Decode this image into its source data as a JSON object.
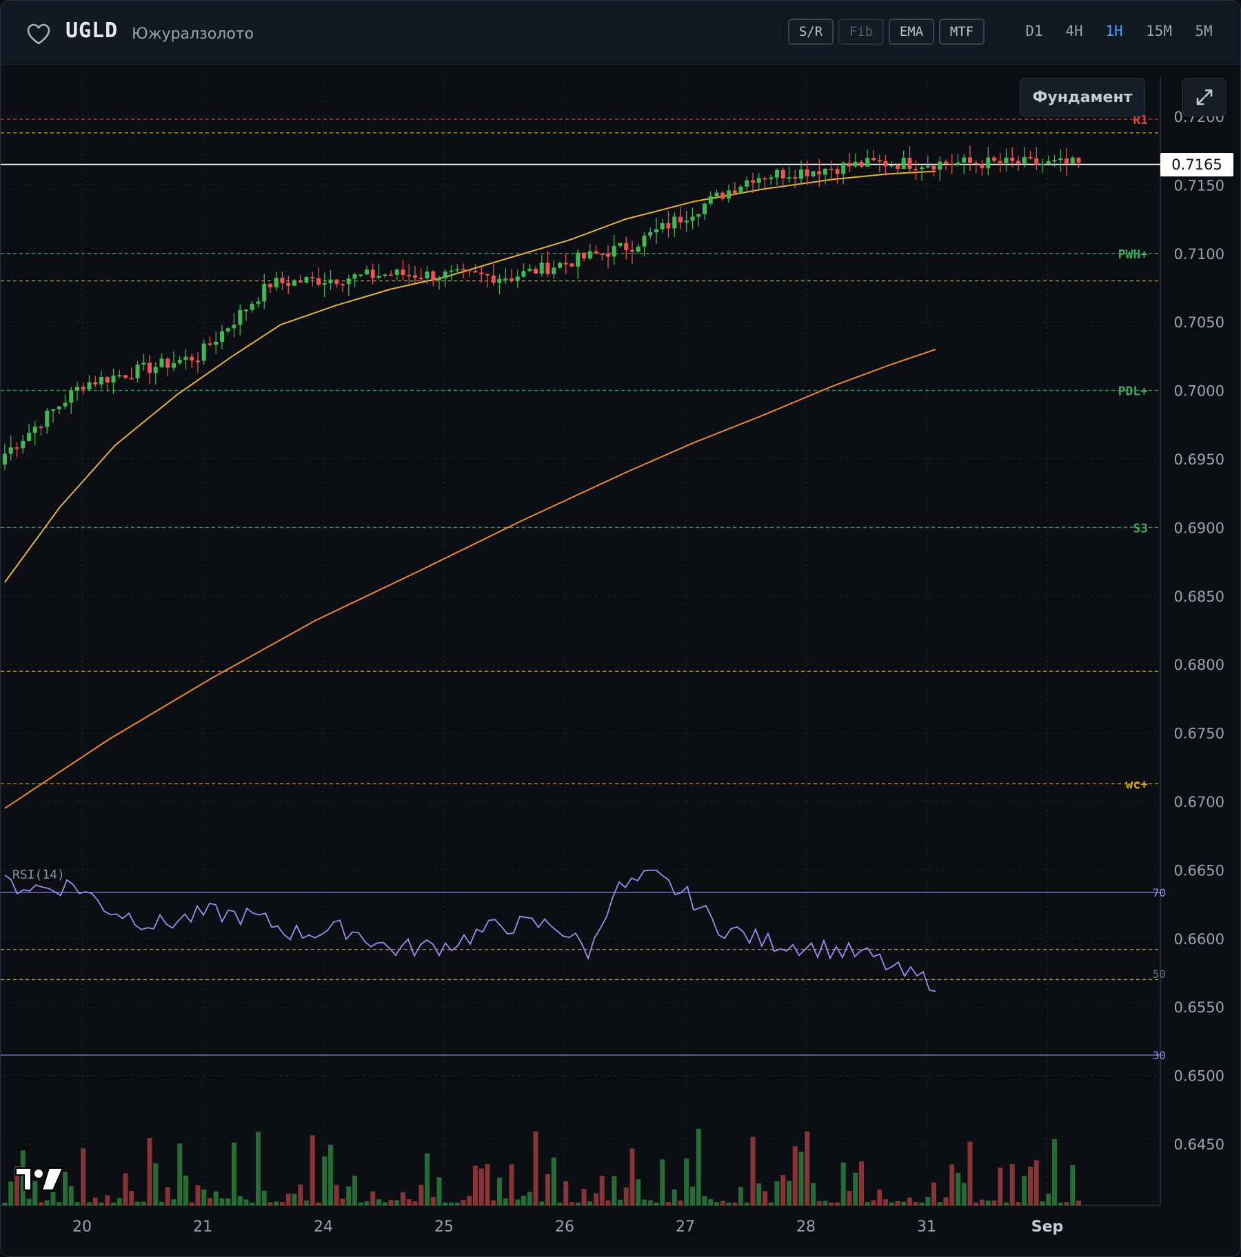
{
  "header": {
    "ticker": "UGLD",
    "company": "Южуралзолото",
    "tools": [
      {
        "label": "S/R",
        "enabled": true
      },
      {
        "label": "Fib",
        "enabled": false
      },
      {
        "label": "EMA",
        "enabled": true
      },
      {
        "label": "MTF",
        "enabled": true
      }
    ],
    "timeframes": [
      "D1",
      "4H",
      "1H",
      "15M",
      "5M"
    ],
    "active_timeframe": "1H"
  },
  "buttons": {
    "fundamental": "Фундамент",
    "expand_icon": "expand-icon",
    "favorite_icon": "heart-icon"
  },
  "colors": {
    "up": "#3fb950",
    "down": "#f05252",
    "ema_fast": "#e8b33a",
    "ema_slow": "#f0892e",
    "rsi": "#a08cf0",
    "resistance": "#d8483f",
    "level_yellow": "#d9a520",
    "level_green": "#3fa85a",
    "price_tag_bg": "#ffffff"
  },
  "chart_data": {
    "type": "candlestick",
    "timeframe": "1H",
    "last_price": "0.7165",
    "y_ticks": [
      "0.7200",
      "0.7150",
      "0.7100",
      "0.7050",
      "0.7000",
      "0.6950",
      "0.6900",
      "0.6850",
      "0.6800",
      "0.6750",
      "0.6700",
      "0.6650",
      "0.6600",
      "0.6550",
      "0.6500",
      "0.6450"
    ],
    "x_ticks": [
      "20",
      "21",
      "24",
      "25",
      "26",
      "27",
      "28",
      "31",
      "Sep"
    ],
    "ylim": [
      0.6415,
      0.723
    ],
    "levels": [
      {
        "label": "R1",
        "value": 0.7198,
        "color": "red"
      },
      {
        "label": "",
        "value": 0.7188,
        "color": "yellow"
      },
      {
        "label": "PWH+",
        "value": 0.71,
        "color": "green"
      },
      {
        "label": "",
        "value": 0.708,
        "color": "yellow"
      },
      {
        "label": "PDL+",
        "value": 0.7,
        "color": "green"
      },
      {
        "label": "S3",
        "value": 0.69,
        "color": "green"
      },
      {
        "label": "",
        "value": 0.6795,
        "color": "yellow"
      },
      {
        "label": "wc+",
        "value": 0.6713,
        "color": "yellow"
      },
      {
        "label": "",
        "value": 0.6592,
        "color": "yellow"
      },
      {
        "label": "",
        "value": 0.657,
        "color": "yellow"
      }
    ],
    "segments": [
      {
        "start": 0.695,
        "end": 0.7005,
        "n": 14
      },
      {
        "start": 0.7005,
        "end": 0.7025,
        "n": 19
      },
      {
        "start": 0.7025,
        "end": 0.7078,
        "n": 12
      },
      {
        "start": 0.7078,
        "end": 0.7085,
        "n": 20
      },
      {
        "start": 0.7085,
        "end": 0.7083,
        "n": 20
      },
      {
        "start": 0.7083,
        "end": 0.7106,
        "n": 20
      },
      {
        "start": 0.7106,
        "end": 0.7156,
        "n": 20
      },
      {
        "start": 0.7156,
        "end": 0.7166,
        "n": 20
      },
      {
        "start": 0.7166,
        "end": 0.7166,
        "n": 20
      },
      {
        "start": 0.7166,
        "end": 0.7165,
        "n": 14
      }
    ],
    "ema_fast": [
      [
        0,
        0.686
      ],
      [
        80,
        0.6915
      ],
      [
        160,
        0.696
      ],
      [
        250,
        0.6997
      ],
      [
        330,
        0.7025
      ],
      [
        400,
        0.7048
      ],
      [
        480,
        0.7062
      ],
      [
        560,
        0.7074
      ],
      [
        640,
        0.7083
      ],
      [
        720,
        0.7095
      ],
      [
        820,
        0.711
      ],
      [
        900,
        0.7125
      ],
      [
        1000,
        0.7138
      ],
      [
        1100,
        0.7147
      ],
      [
        1200,
        0.7154
      ],
      [
        1280,
        0.7158
      ],
      [
        1350,
        0.716
      ]
    ],
    "ema_slow": [
      [
        0,
        0.6695
      ],
      [
        150,
        0.6745
      ],
      [
        300,
        0.679
      ],
      [
        450,
        0.6832
      ],
      [
        600,
        0.6868
      ],
      [
        750,
        0.6905
      ],
      [
        900,
        0.694
      ],
      [
        1000,
        0.6962
      ],
      [
        1100,
        0.6982
      ],
      [
        1200,
        0.7003
      ],
      [
        1280,
        0.7018
      ],
      [
        1350,
        0.703
      ]
    ],
    "rsi": {
      "label": "RSI(14)",
      "levels": [
        "70",
        "50",
        "30"
      ],
      "anchors": [
        [
          0,
          72
        ],
        [
          60,
          71
        ],
        [
          100,
          72
        ],
        [
          150,
          66
        ],
        [
          220,
          62
        ],
        [
          300,
          65
        ],
        [
          360,
          64
        ],
        [
          420,
          60
        ],
        [
          500,
          61
        ],
        [
          560,
          56
        ],
        [
          640,
          57
        ],
        [
          720,
          62
        ],
        [
          800,
          62
        ],
        [
          850,
          55
        ],
        [
          880,
          70
        ],
        [
          940,
          74
        ],
        [
          1000,
          68
        ],
        [
          1030,
          62
        ],
        [
          1100,
          58
        ],
        [
          1200,
          56
        ],
        [
          1260,
          54
        ],
        [
          1300,
          50
        ],
        [
          1350,
          48
        ]
      ]
    }
  }
}
